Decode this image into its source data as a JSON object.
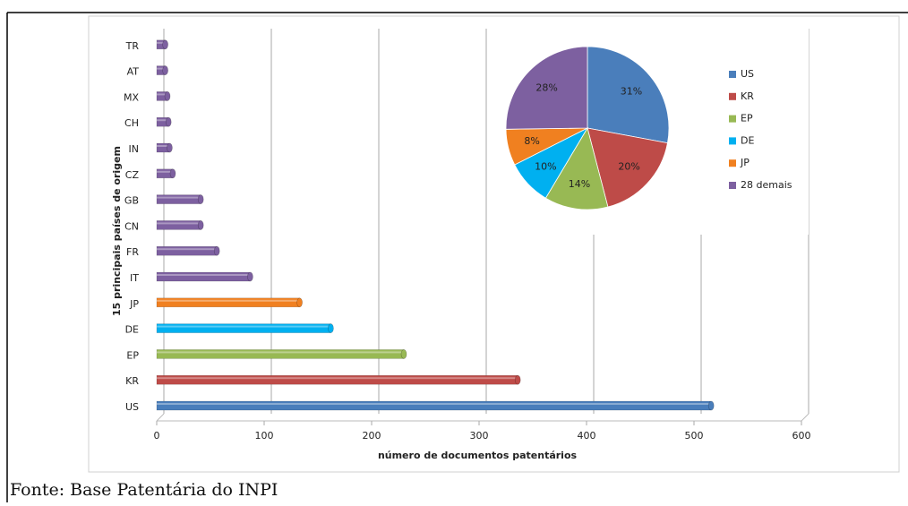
{
  "chart_data": [
    {
      "type": "bar",
      "orientation": "horizontal",
      "categories": [
        "US",
        "KR",
        "EP",
        "DE",
        "JP",
        "IT",
        "FR",
        "CN",
        "GB",
        "CZ",
        "IN",
        "CH",
        "MX",
        "AT",
        "TR"
      ],
      "values": [
        516,
        336,
        230,
        162,
        133,
        87,
        56,
        41,
        41,
        15,
        12,
        11,
        10,
        8,
        8
      ],
      "colors": [
        "#4a7ebb",
        "#be4b48",
        "#98b954",
        "#00b0f0",
        "#f08020",
        "#7d60a0",
        "#7d60a0",
        "#7d60a0",
        "#7d60a0",
        "#7d60a0",
        "#7d60a0",
        "#7d60a0",
        "#7d60a0",
        "#7d60a0",
        "#7d60a0"
      ],
      "xlim": [
        0,
        600
      ],
      "xticks": [
        0,
        100,
        200,
        300,
        400,
        500,
        600
      ],
      "x_label": "número de documentos patentários",
      "y_label": "15 principais países de origem",
      "grid": true
    },
    {
      "type": "pie",
      "categories": [
        "US",
        "KR",
        "EP",
        "DE",
        "JP",
        "28 demais"
      ],
      "values": [
        31,
        20,
        14,
        10,
        8,
        28
      ],
      "value_labels": [
        "31%",
        "20%",
        "14%",
        "10%",
        "8%",
        "28%"
      ],
      "colors": [
        "#4a7ebb",
        "#be4b48",
        "#98b954",
        "#00b0f0",
        "#f08020",
        "#7d60a0"
      ],
      "legend": "right"
    }
  ],
  "caption": "Fonte: Base Patentária do INPI"
}
